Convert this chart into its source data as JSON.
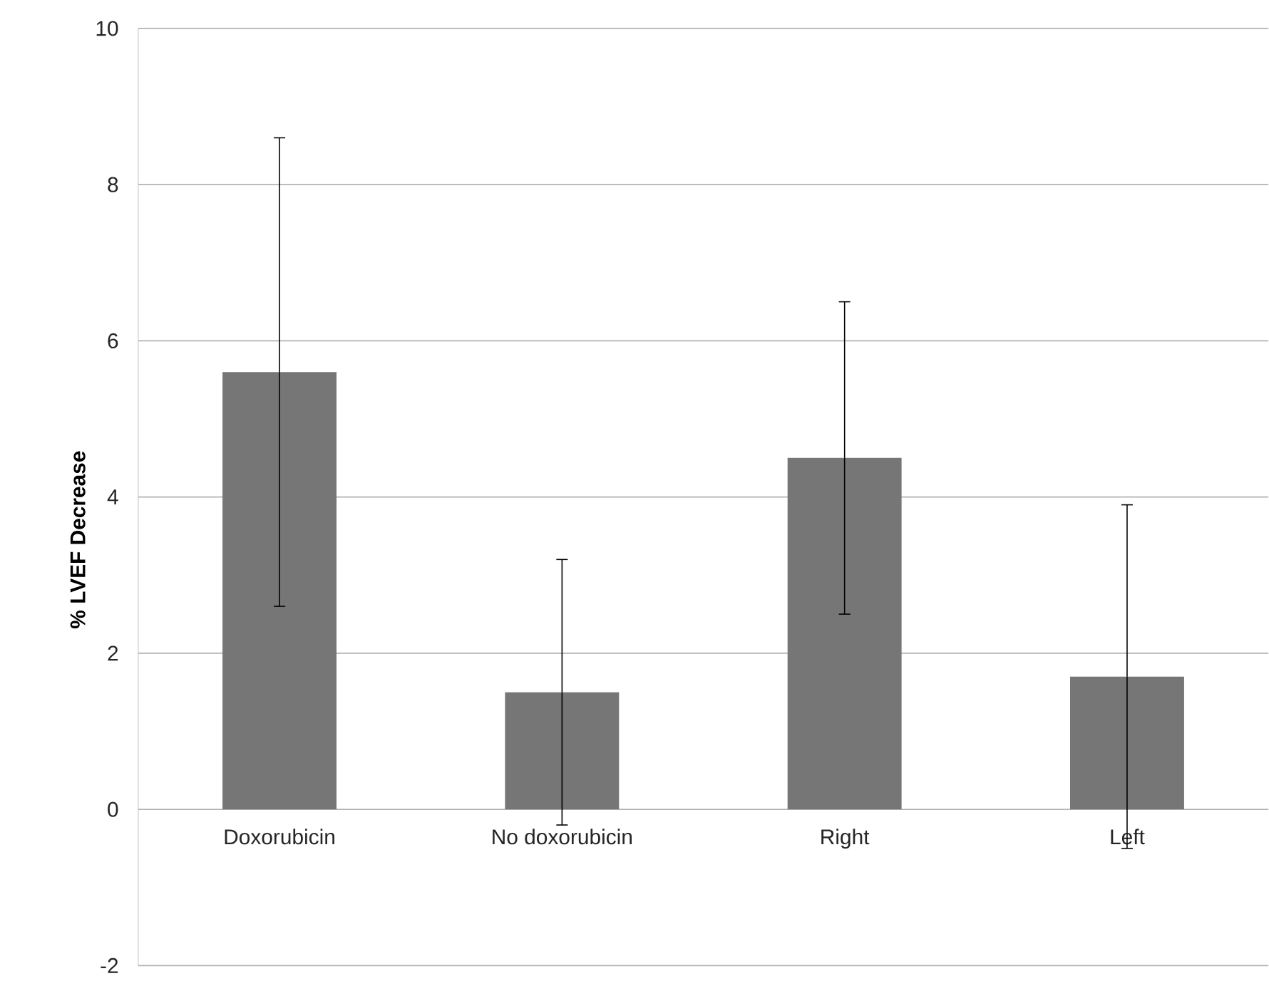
{
  "chart_data": {
    "type": "bar",
    "ylabel": "% LVEF Decrease",
    "categories": [
      "Doxorubicin",
      "No doxorubicin",
      "Right",
      "Left"
    ],
    "values": [
      5.6,
      1.5,
      4.5,
      1.7
    ],
    "errors": [
      3.0,
      1.7,
      2.0,
      2.2
    ],
    "color": "#767676",
    "ylim": [
      -2,
      10
    ],
    "yticks": [
      -2,
      0,
      2,
      4,
      6,
      8,
      10
    ],
    "grid": "y"
  }
}
